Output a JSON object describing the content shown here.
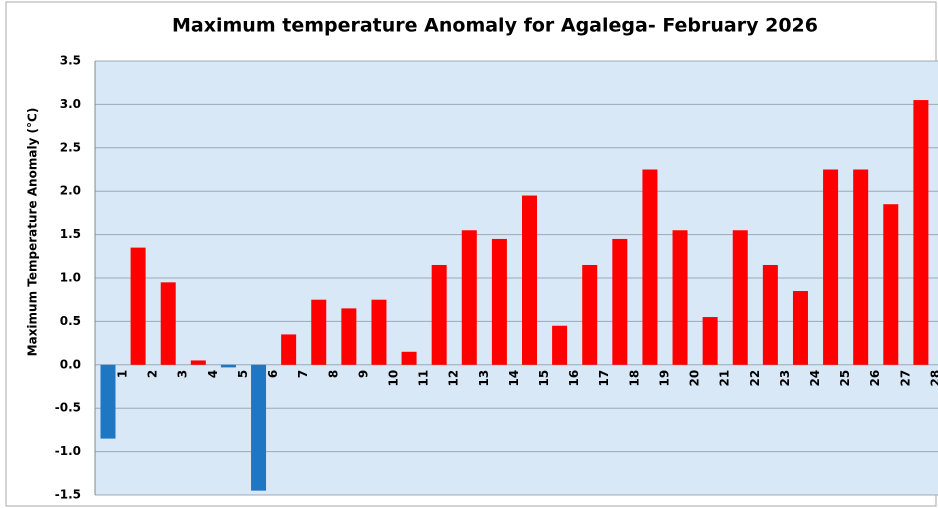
{
  "chart_data": {
    "type": "bar",
    "title": "Maximum temperature Anomaly for Agalega- February 2026",
    "y_label": "Maximum Temperature Anomaly (°C)",
    "categories": [
      "1",
      "2",
      "3",
      "4",
      "5",
      "6",
      "7",
      "8",
      "9",
      "10",
      "11",
      "12",
      "13",
      "14",
      "15",
      "16",
      "17",
      "18",
      "19",
      "20",
      "21",
      "22",
      "23",
      "24",
      "25",
      "26",
      "27",
      "28"
    ],
    "values": [
      -0.85,
      1.35,
      0.95,
      0.05,
      -0.03,
      -1.45,
      0.35,
      0.75,
      0.65,
      0.75,
      0.15,
      1.15,
      1.55,
      1.45,
      1.95,
      0.45,
      1.15,
      1.45,
      2.25,
      1.55,
      0.55,
      1.55,
      1.15,
      0.85,
      2.25,
      2.25,
      1.85,
      3.05
    ],
    "positive_color": "#ff0000",
    "negative_color": "#1f77c4",
    "ylim": [
      -1.5,
      3.5
    ],
    "yticks": [
      -1.5,
      {
        "value": -1,
        "label": "-1.0"
      },
      -0.5,
      {
        "value": 0,
        "label": "0.0"
      },
      0.5,
      {
        "value": 1,
        "label": "1.0"
      },
      1.5,
      {
        "value": 2,
        "label": "2.0"
      },
      2.5,
      {
        "value": 3,
        "label": "3.0"
      },
      3.5
    ],
    "grid": true
  }
}
